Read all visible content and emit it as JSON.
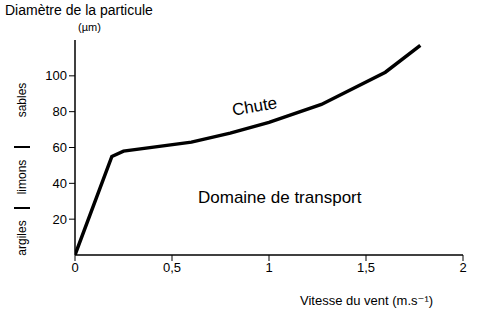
{
  "chart_data": {
    "type": "line",
    "x_label": "Vitesse du vent (m.s⁻¹)",
    "y_label": [
      "Diamètre de la particule",
      "(µm)"
    ],
    "x": [
      0,
      0.19,
      0.25,
      0.6,
      0.8,
      1.0,
      1.27,
      1.6,
      1.78
    ],
    "series": [
      {
        "color": "#000000",
        "values": [
          0,
          55,
          58,
          63,
          68,
          74,
          84,
          102,
          117
        ]
      }
    ],
    "xlim": [
      0,
      2
    ],
    "xticks": [
      0,
      {
        "value": 0.5,
        "label": "0,5"
      },
      1,
      {
        "value": 1.5,
        "label": "1,5"
      },
      2
    ],
    "ylim": [
      0,
      120
    ],
    "yticks": [
      20,
      40,
      60,
      80,
      100
    ],
    "grid": false,
    "annotations": [
      "Chute",
      "Domaine de transport"
    ],
    "y_annotations": [
      "sables",
      "limons",
      "argiles"
    ]
  }
}
